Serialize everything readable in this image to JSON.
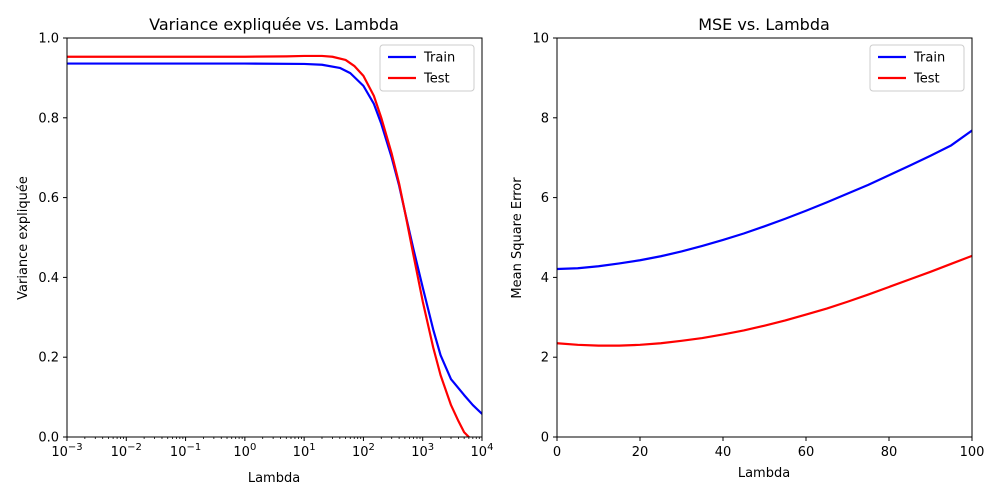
{
  "chart_data": [
    {
      "type": "line",
      "title": "Variance expliquée vs. Lambda",
      "xlabel": "Lambda",
      "ylabel": "Variance expliquée",
      "xscale": "log",
      "xlim": [
        0.001,
        10000
      ],
      "ylim": [
        0,
        1.0
      ],
      "xticks": [
        0.001,
        0.01,
        0.1,
        1,
        10,
        100,
        1000,
        10000
      ],
      "xtick_labels": [
        {
          "base": "10",
          "exp": "−3"
        },
        {
          "base": "10",
          "exp": "−2"
        },
        {
          "base": "10",
          "exp": "−1"
        },
        {
          "base": "10",
          "exp": "0"
        },
        {
          "base": "10",
          "exp": "1"
        },
        {
          "base": "10",
          "exp": "2"
        },
        {
          "base": "10",
          "exp": "3"
        },
        {
          "base": "10",
          "exp": "4"
        }
      ],
      "yticks": [
        0.0,
        0.2,
        0.4,
        0.6,
        0.8,
        1.0
      ],
      "ytick_labels": [
        "0.0",
        "0.2",
        "0.4",
        "0.6",
        "0.8",
        "1.0"
      ],
      "grid": false,
      "legend": "top-right",
      "series": [
        {
          "name": "Train",
          "color": "#0000ff",
          "x": [
            0.001,
            0.01,
            0.1,
            1,
            10,
            20,
            40,
            60,
            100,
            150,
            200,
            300,
            400,
            500,
            700,
            1000,
            1500,
            2000,
            3000,
            5000,
            7000,
            10000
          ],
          "y": [
            0.936,
            0.936,
            0.936,
            0.936,
            0.935,
            0.933,
            0.925,
            0.912,
            0.88,
            0.835,
            0.785,
            0.7,
            0.63,
            0.565,
            0.47,
            0.375,
            0.27,
            0.205,
            0.145,
            0.105,
            0.08,
            0.058
          ]
        },
        {
          "name": "Test",
          "color": "#ff0000",
          "x": [
            0.001,
            0.01,
            0.1,
            1,
            5,
            10,
            20,
            30,
            50,
            70,
            100,
            150,
            200,
            300,
            400,
            500,
            700,
            1000,
            1500,
            2000,
            3000,
            4000,
            5000,
            6000
          ],
          "y": [
            0.953,
            0.953,
            0.953,
            0.953,
            0.954,
            0.955,
            0.955,
            0.953,
            0.945,
            0.93,
            0.905,
            0.855,
            0.8,
            0.71,
            0.635,
            0.565,
            0.455,
            0.34,
            0.225,
            0.155,
            0.08,
            0.04,
            0.012,
            0.0
          ]
        }
      ]
    },
    {
      "type": "line",
      "title": "MSE vs. Lambda",
      "xlabel": "Lambda",
      "ylabel": "Mean Square Error",
      "xlim": [
        0,
        100
      ],
      "ylim": [
        0,
        10
      ],
      "xticks": [
        0,
        20,
        40,
        60,
        80,
        100
      ],
      "xtick_labels": [
        "0",
        "20",
        "40",
        "60",
        "80",
        "100"
      ],
      "yticks": [
        0,
        2,
        4,
        6,
        8,
        10
      ],
      "ytick_labels": [
        "0",
        "2",
        "4",
        "6",
        "8",
        "10"
      ],
      "grid": false,
      "legend": "top-right",
      "series": [
        {
          "name": "Train",
          "color": "#0000ff",
          "x": [
            0,
            5,
            10,
            15,
            20,
            25,
            30,
            35,
            40,
            45,
            50,
            55,
            60,
            65,
            70,
            75,
            80,
            85,
            90,
            95,
            100
          ],
          "y": [
            4.21,
            4.23,
            4.28,
            4.35,
            4.43,
            4.53,
            4.65,
            4.79,
            4.94,
            5.1,
            5.28,
            5.47,
            5.67,
            5.88,
            6.1,
            6.32,
            6.56,
            6.8,
            7.05,
            7.31,
            7.68
          ]
        },
        {
          "name": "Test",
          "color": "#ff0000",
          "x": [
            0,
            5,
            10,
            15,
            20,
            25,
            30,
            35,
            40,
            45,
            50,
            55,
            60,
            65,
            70,
            75,
            80,
            85,
            90,
            95,
            100
          ],
          "y": [
            2.35,
            2.31,
            2.29,
            2.29,
            2.31,
            2.35,
            2.41,
            2.48,
            2.57,
            2.67,
            2.79,
            2.92,
            3.07,
            3.22,
            3.39,
            3.57,
            3.76,
            3.95,
            4.14,
            4.34,
            4.54
          ]
        }
      ]
    }
  ]
}
